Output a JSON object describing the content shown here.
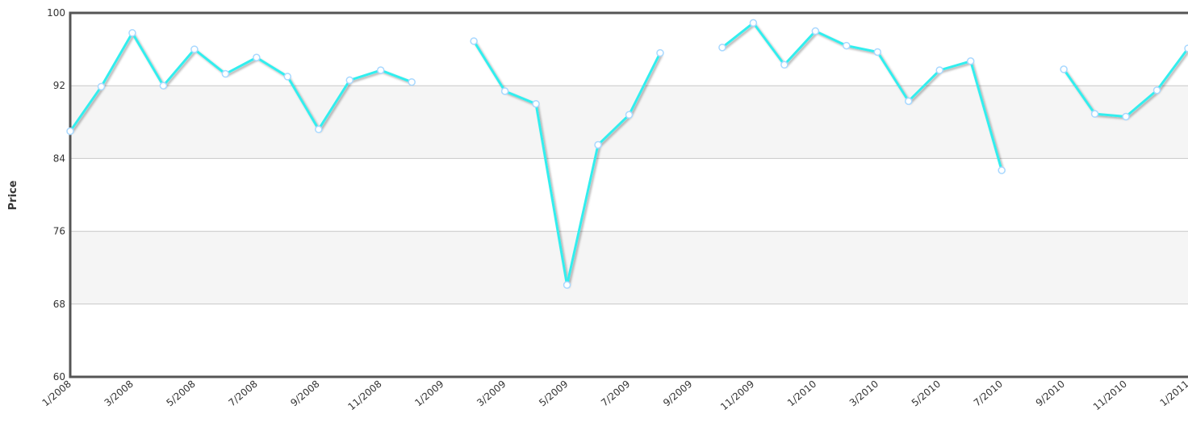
{
  "chart_data": {
    "type": "line",
    "y_label": "Price",
    "categories": [
      "1/2008",
      null,
      "3/2008",
      null,
      "5/2008",
      null,
      "7/2008",
      null,
      "9/2008",
      null,
      "11/2008",
      null,
      "1/2009",
      null,
      "3/2009",
      null,
      "5/2009",
      null,
      "7/2009",
      null,
      "9/2009",
      null,
      "11/2009",
      null,
      "1/2010",
      null,
      "3/2010",
      null,
      "5/2010",
      null,
      "7/2010",
      null,
      "9/2010",
      null,
      "11/2010",
      null,
      "1/2011"
    ],
    "series": [
      {
        "name": "Price",
        "color": "#33eeee",
        "values": [
          87.0,
          91.9,
          97.8,
          92.0,
          96.0,
          93.3,
          95.1,
          93.0,
          87.2,
          92.6,
          93.7,
          92.4,
          null,
          96.9,
          91.4,
          90.0,
          70.1,
          85.5,
          88.8,
          95.6,
          null,
          96.2,
          98.9,
          94.3,
          98.0,
          96.4,
          95.7,
          90.3,
          93.7,
          94.7,
          82.7,
          null,
          93.8,
          88.9,
          88.6,
          91.5,
          96.1
        ]
      }
    ],
    "ylim": [
      60,
      100
    ],
    "yticks": [
      60,
      68,
      76,
      84,
      92,
      100
    ],
    "grid": true
  }
}
